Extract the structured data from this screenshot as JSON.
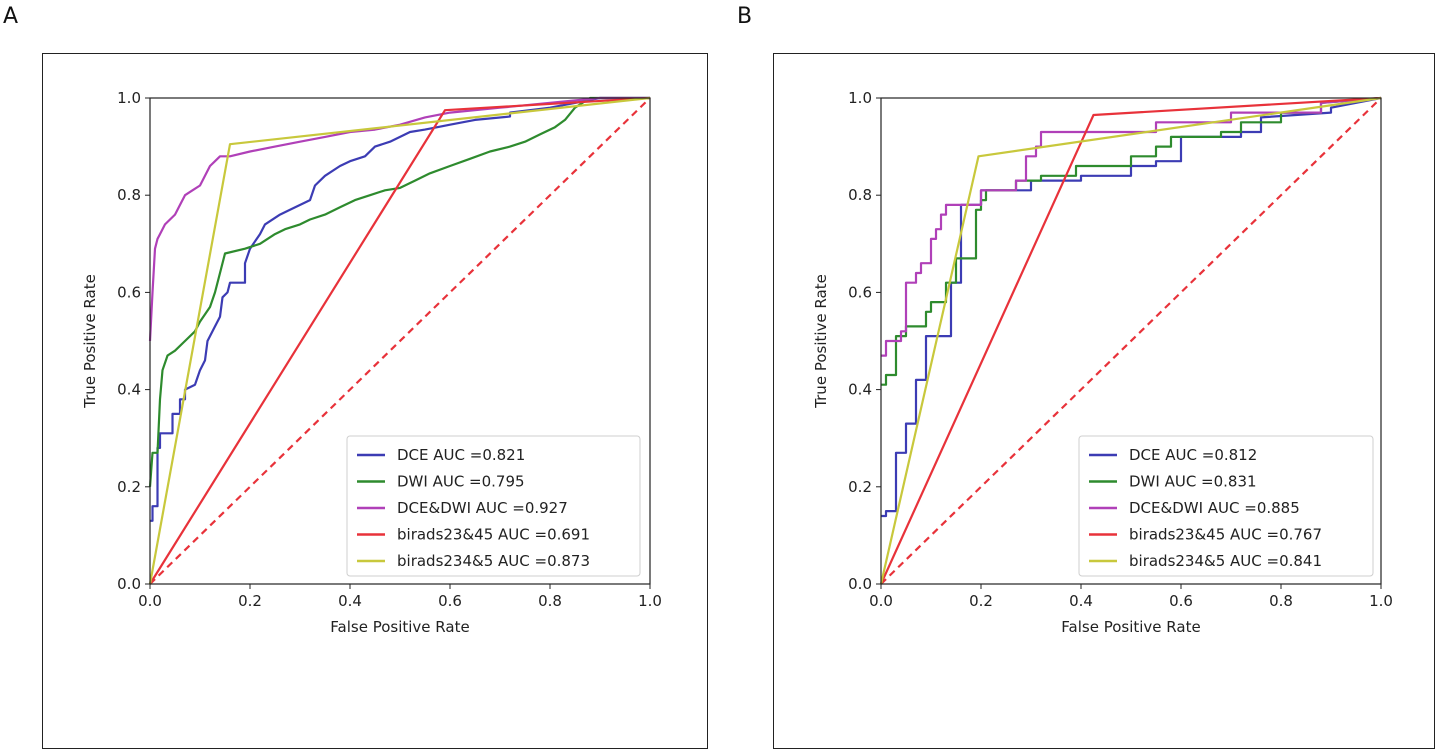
{
  "panels": [
    {
      "letter": "A"
    },
    {
      "letter": "B"
    }
  ],
  "chart_data": [
    {
      "type": "line",
      "panel": "A",
      "title": "",
      "xlabel": "False Positive Rate",
      "ylabel": "True Positive Rate",
      "xlim": [
        0.0,
        1.0
      ],
      "ylim": [
        0.0,
        1.0
      ],
      "xticks": [
        "0.0",
        "0.2",
        "0.4",
        "0.6",
        "0.8",
        "1.0"
      ],
      "yticks": [
        "0.0",
        "0.2",
        "0.4",
        "0.6",
        "0.8",
        "1.0"
      ],
      "legend_position": "lower-right",
      "series": [
        {
          "name": "DCE AUC =0.821",
          "color": "#3c3cb4",
          "dashed": false,
          "points": [
            [
              0,
              0.13
            ],
            [
              0.005,
              0.13
            ],
            [
              0.005,
              0.16
            ],
            [
              0.015,
              0.16
            ],
            [
              0.015,
              0.28
            ],
            [
              0.02,
              0.28
            ],
            [
              0.02,
              0.31
            ],
            [
              0.045,
              0.31
            ],
            [
              0.045,
              0.35
            ],
            [
              0.06,
              0.35
            ],
            [
              0.06,
              0.38
            ],
            [
              0.07,
              0.38
            ],
            [
              0.07,
              0.4
            ],
            [
              0.09,
              0.41
            ],
            [
              0.1,
              0.44
            ],
            [
              0.11,
              0.46
            ],
            [
              0.115,
              0.5
            ],
            [
              0.13,
              0.53
            ],
            [
              0.14,
              0.55
            ],
            [
              0.145,
              0.59
            ],
            [
              0.155,
              0.6
            ],
            [
              0.16,
              0.62
            ],
            [
              0.19,
              0.62
            ],
            [
              0.19,
              0.66
            ],
            [
              0.2,
              0.69
            ],
            [
              0.22,
              0.72
            ],
            [
              0.23,
              0.74
            ],
            [
              0.26,
              0.76
            ],
            [
              0.28,
              0.77
            ],
            [
              0.32,
              0.79
            ],
            [
              0.33,
              0.82
            ],
            [
              0.35,
              0.84
            ],
            [
              0.38,
              0.86
            ],
            [
              0.4,
              0.87
            ],
            [
              0.43,
              0.88
            ],
            [
              0.45,
              0.9
            ],
            [
              0.48,
              0.91
            ],
            [
              0.5,
              0.92
            ],
            [
              0.52,
              0.93
            ],
            [
              0.55,
              0.935
            ],
            [
              0.6,
              0.945
            ],
            [
              0.65,
              0.955
            ],
            [
              0.72,
              0.962
            ],
            [
              0.72,
              0.97
            ],
            [
              0.8,
              0.98
            ],
            [
              0.85,
              0.99
            ],
            [
              0.9,
              1.0
            ],
            [
              1.0,
              1.0
            ]
          ]
        },
        {
          "name": "DWI AUC =0.795",
          "color": "#2e8b2e",
          "dashed": false,
          "points": [
            [
              0,
              0.2
            ],
            [
              0.005,
              0.27
            ],
            [
              0.015,
              0.27
            ],
            [
              0.02,
              0.38
            ],
            [
              0.025,
              0.44
            ],
            [
              0.035,
              0.47
            ],
            [
              0.05,
              0.48
            ],
            [
              0.07,
              0.5
            ],
            [
              0.09,
              0.52
            ],
            [
              0.1,
              0.54
            ],
            [
              0.12,
              0.57
            ],
            [
              0.13,
              0.6
            ],
            [
              0.14,
              0.64
            ],
            [
              0.15,
              0.68
            ],
            [
              0.19,
              0.69
            ],
            [
              0.22,
              0.7
            ],
            [
              0.25,
              0.72
            ],
            [
              0.27,
              0.73
            ],
            [
              0.3,
              0.74
            ],
            [
              0.32,
              0.75
            ],
            [
              0.35,
              0.76
            ],
            [
              0.38,
              0.775
            ],
            [
              0.41,
              0.79
            ],
            [
              0.44,
              0.8
            ],
            [
              0.47,
              0.81
            ],
            [
              0.5,
              0.815
            ],
            [
              0.53,
              0.83
            ],
            [
              0.56,
              0.845
            ],
            [
              0.6,
              0.86
            ],
            [
              0.64,
              0.875
            ],
            [
              0.68,
              0.89
            ],
            [
              0.72,
              0.9
            ],
            [
              0.75,
              0.91
            ],
            [
              0.78,
              0.925
            ],
            [
              0.81,
              0.94
            ],
            [
              0.83,
              0.955
            ],
            [
              0.85,
              0.98
            ],
            [
              0.88,
              1.0
            ],
            [
              1.0,
              1.0
            ]
          ]
        },
        {
          "name": "DCE&DWI AUC =0.927",
          "color": "#b040b8",
          "dashed": false,
          "points": [
            [
              0,
              0.5
            ],
            [
              0.005,
              0.6
            ],
            [
              0.01,
              0.69
            ],
            [
              0.015,
              0.71
            ],
            [
              0.02,
              0.72
            ],
            [
              0.03,
              0.74
            ],
            [
              0.04,
              0.75
            ],
            [
              0.05,
              0.76
            ],
            [
              0.06,
              0.78
            ],
            [
              0.07,
              0.8
            ],
            [
              0.085,
              0.81
            ],
            [
              0.1,
              0.82
            ],
            [
              0.11,
              0.84
            ],
            [
              0.12,
              0.86
            ],
            [
              0.13,
              0.87
            ],
            [
              0.14,
              0.88
            ],
            [
              0.16,
              0.88
            ],
            [
              0.2,
              0.89
            ],
            [
              0.25,
              0.9
            ],
            [
              0.3,
              0.91
            ],
            [
              0.35,
              0.92
            ],
            [
              0.4,
              0.93
            ],
            [
              0.45,
              0.935
            ],
            [
              0.5,
              0.945
            ],
            [
              0.55,
              0.96
            ],
            [
              0.6,
              0.97
            ],
            [
              0.7,
              0.98
            ],
            [
              0.8,
              0.99
            ],
            [
              0.9,
              1.0
            ],
            [
              1.0,
              1.0
            ]
          ]
        },
        {
          "name": "birads23&45 AUC =0.691",
          "color": "#e8323a",
          "dashed": false,
          "points": [
            [
              0,
              0
            ],
            [
              0.59,
              0.975
            ],
            [
              1.0,
              1.0
            ]
          ]
        },
        {
          "name": "birads234&5 AUC =0.873",
          "color": "#c8c83c",
          "dashed": false,
          "points": [
            [
              0,
              0
            ],
            [
              0.16,
              0.905
            ],
            [
              1.0,
              1.0
            ]
          ]
        },
        {
          "name": "",
          "color": "#e8323a",
          "dashed": true,
          "legend": false,
          "points": [
            [
              0,
              0
            ],
            [
              1.0,
              1.0
            ]
          ]
        }
      ]
    },
    {
      "type": "line",
      "panel": "B",
      "title": "",
      "xlabel": "False Positive Rate",
      "ylabel": "True Positive Rate",
      "xlim": [
        0.0,
        1.0
      ],
      "ylim": [
        0.0,
        1.0
      ],
      "xticks": [
        "0.0",
        "0.2",
        "0.4",
        "0.6",
        "0.8",
        "1.0"
      ],
      "yticks": [
        "0.0",
        "0.2",
        "0.4",
        "0.6",
        "0.8",
        "1.0"
      ],
      "legend_position": "lower-right",
      "series": [
        {
          "name": "DCE AUC =0.812",
          "color": "#3c3cb4",
          "dashed": false,
          "points": [
            [
              0,
              0.14
            ],
            [
              0.01,
              0.14
            ],
            [
              0.01,
              0.15
            ],
            [
              0.03,
              0.15
            ],
            [
              0.03,
              0.27
            ],
            [
              0.05,
              0.27
            ],
            [
              0.05,
              0.33
            ],
            [
              0.07,
              0.33
            ],
            [
              0.07,
              0.42
            ],
            [
              0.09,
              0.42
            ],
            [
              0.09,
              0.51
            ],
            [
              0.14,
              0.51
            ],
            [
              0.14,
              0.62
            ],
            [
              0.16,
              0.62
            ],
            [
              0.16,
              0.78
            ],
            [
              0.2,
              0.78
            ],
            [
              0.2,
              0.81
            ],
            [
              0.3,
              0.81
            ],
            [
              0.3,
              0.83
            ],
            [
              0.4,
              0.83
            ],
            [
              0.4,
              0.84
            ],
            [
              0.5,
              0.84
            ],
            [
              0.5,
              0.86
            ],
            [
              0.55,
              0.86
            ],
            [
              0.55,
              0.87
            ],
            [
              0.6,
              0.87
            ],
            [
              0.6,
              0.92
            ],
            [
              0.72,
              0.92
            ],
            [
              0.72,
              0.93
            ],
            [
              0.76,
              0.93
            ],
            [
              0.76,
              0.96
            ],
            [
              0.9,
              0.97
            ],
            [
              0.9,
              0.98
            ],
            [
              1.0,
              1.0
            ]
          ]
        },
        {
          "name": "DWI AUC =0.831",
          "color": "#2e8b2e",
          "dashed": false,
          "points": [
            [
              0,
              0.41
            ],
            [
              0.01,
              0.41
            ],
            [
              0.01,
              0.43
            ],
            [
              0.03,
              0.43
            ],
            [
              0.03,
              0.51
            ],
            [
              0.05,
              0.51
            ],
            [
              0.05,
              0.53
            ],
            [
              0.09,
              0.53
            ],
            [
              0.09,
              0.56
            ],
            [
              0.1,
              0.56
            ],
            [
              0.1,
              0.58
            ],
            [
              0.13,
              0.58
            ],
            [
              0.13,
              0.62
            ],
            [
              0.15,
              0.62
            ],
            [
              0.15,
              0.67
            ],
            [
              0.19,
              0.67
            ],
            [
              0.19,
              0.77
            ],
            [
              0.2,
              0.77
            ],
            [
              0.2,
              0.79
            ],
            [
              0.21,
              0.79
            ],
            [
              0.21,
              0.81
            ],
            [
              0.27,
              0.81
            ],
            [
              0.27,
              0.83
            ],
            [
              0.32,
              0.83
            ],
            [
              0.32,
              0.84
            ],
            [
              0.39,
              0.84
            ],
            [
              0.39,
              0.86
            ],
            [
              0.5,
              0.86
            ],
            [
              0.5,
              0.88
            ],
            [
              0.55,
              0.88
            ],
            [
              0.55,
              0.9
            ],
            [
              0.58,
              0.9
            ],
            [
              0.58,
              0.92
            ],
            [
              0.68,
              0.92
            ],
            [
              0.68,
              0.93
            ],
            [
              0.72,
              0.93
            ],
            [
              0.72,
              0.95
            ],
            [
              0.8,
              0.95
            ],
            [
              0.8,
              0.97
            ],
            [
              0.88,
              0.97
            ],
            [
              0.88,
              0.99
            ],
            [
              1.0,
              1.0
            ]
          ]
        },
        {
          "name": "DCE&DWI AUC =0.885",
          "color": "#b040b8",
          "dashed": false,
          "points": [
            [
              0,
              0.47
            ],
            [
              0.01,
              0.47
            ],
            [
              0.01,
              0.5
            ],
            [
              0.04,
              0.5
            ],
            [
              0.04,
              0.52
            ],
            [
              0.05,
              0.52
            ],
            [
              0.05,
              0.62
            ],
            [
              0.07,
              0.62
            ],
            [
              0.07,
              0.64
            ],
            [
              0.08,
              0.64
            ],
            [
              0.08,
              0.66
            ],
            [
              0.1,
              0.66
            ],
            [
              0.1,
              0.71
            ],
            [
              0.11,
              0.71
            ],
            [
              0.11,
              0.73
            ],
            [
              0.12,
              0.73
            ],
            [
              0.12,
              0.76
            ],
            [
              0.13,
              0.76
            ],
            [
              0.13,
              0.78
            ],
            [
              0.2,
              0.78
            ],
            [
              0.2,
              0.81
            ],
            [
              0.27,
              0.81
            ],
            [
              0.27,
              0.83
            ],
            [
              0.29,
              0.83
            ],
            [
              0.29,
              0.88
            ],
            [
              0.31,
              0.88
            ],
            [
              0.31,
              0.9
            ],
            [
              0.32,
              0.9
            ],
            [
              0.32,
              0.93
            ],
            [
              0.55,
              0.93
            ],
            [
              0.55,
              0.95
            ],
            [
              0.7,
              0.95
            ],
            [
              0.7,
              0.97
            ],
            [
              0.88,
              0.97
            ],
            [
              0.88,
              0.99
            ],
            [
              1.0,
              1.0
            ]
          ]
        },
        {
          "name": "birads23&45 AUC =0.767",
          "color": "#e8323a",
          "dashed": false,
          "points": [
            [
              0,
              0
            ],
            [
              0.425,
              0.965
            ],
            [
              1.0,
              1.0
            ]
          ]
        },
        {
          "name": "birads234&5 AUC =0.841",
          "color": "#c8c83c",
          "dashed": false,
          "points": [
            [
              0,
              0
            ],
            [
              0.195,
              0.88
            ],
            [
              1.0,
              1.0
            ]
          ]
        },
        {
          "name": "",
          "color": "#e8323a",
          "dashed": true,
          "legend": false,
          "points": [
            [
              0,
              0
            ],
            [
              1.0,
              1.0
            ]
          ]
        }
      ]
    }
  ]
}
